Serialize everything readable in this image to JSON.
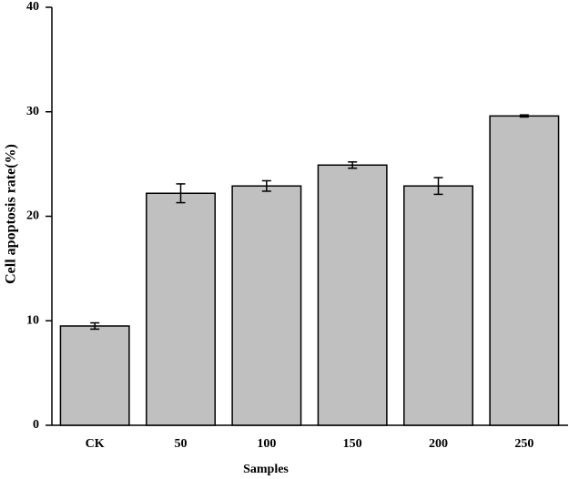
{
  "chart_data": {
    "type": "bar",
    "x_label": "Samples",
    "y_label": "Cell apoptosis rate(%)",
    "categories": [
      "CK",
      "50",
      "100",
      "150",
      "200",
      "250"
    ],
    "values": [
      9.5,
      22.2,
      22.9,
      24.9,
      22.9,
      29.6
    ],
    "errors": [
      0.3,
      0.9,
      0.5,
      0.3,
      0.8,
      0.1
    ],
    "color": "#c0c0c0",
    "ylim": [
      0,
      40
    ],
    "yticks": [
      0,
      10,
      20,
      30,
      40
    ],
    "grid": false
  }
}
